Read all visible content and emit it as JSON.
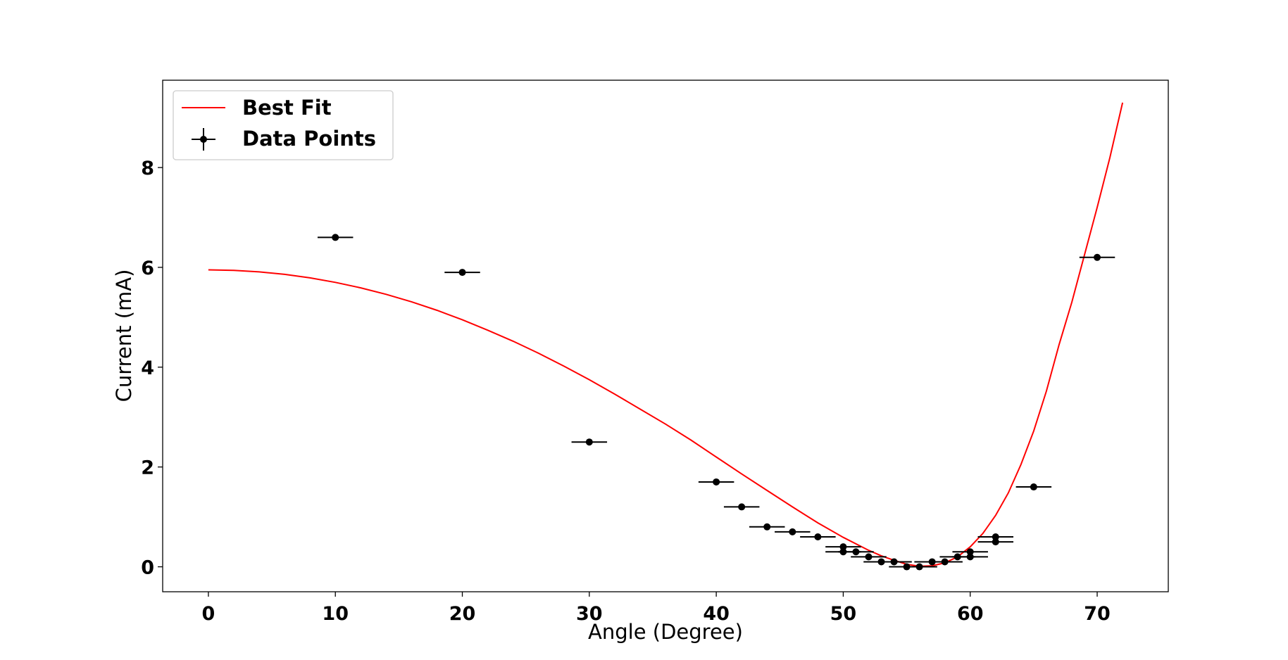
{
  "chart_data": {
    "type": "scatter",
    "title": "",
    "xlabel": "Angle (Degree)",
    "ylabel": "Current (mA)",
    "xlim": [
      -3.6,
      75.6
    ],
    "ylim": [
      -0.5,
      9.75
    ],
    "xticks": [
      0,
      10,
      20,
      30,
      40,
      50,
      60,
      70
    ],
    "yticks": [
      0,
      2,
      4,
      6,
      8
    ],
    "grid": false,
    "legend_position": "upper left",
    "legend": [
      "Best Fit",
      "Data Points"
    ],
    "colors": {
      "fit": "#ff0000",
      "points": "#000000"
    },
    "series": [
      {
        "name": "Best Fit",
        "kind": "line",
        "x": [
          0,
          2,
          4,
          6,
          8,
          10,
          12,
          14,
          16,
          18,
          20,
          22,
          24,
          26,
          28,
          30,
          32,
          34,
          36,
          38,
          40,
          42,
          44,
          46,
          48,
          50,
          52,
          53,
          54,
          55,
          56,
          57,
          58,
          59,
          60,
          61,
          62,
          63,
          64,
          65,
          66,
          67,
          68,
          69,
          70,
          71,
          72
        ],
        "y": [
          5.95,
          5.94,
          5.91,
          5.86,
          5.79,
          5.7,
          5.59,
          5.46,
          5.31,
          5.14,
          4.95,
          4.74,
          4.52,
          4.28,
          4.02,
          3.75,
          3.46,
          3.16,
          2.86,
          2.54,
          2.2,
          1.86,
          1.53,
          1.2,
          0.88,
          0.59,
          0.33,
          0.22,
          0.13,
          0.05,
          0.01,
          0.02,
          0.08,
          0.2,
          0.4,
          0.67,
          1.03,
          1.48,
          2.05,
          2.72,
          3.52,
          4.45,
          5.3,
          6.25,
          7.2,
          8.2,
          9.3
        ]
      },
      {
        "name": "Data Points",
        "kind": "errorbar",
        "x_error": 1.4,
        "x": [
          10,
          20,
          30,
          40,
          42,
          44,
          46,
          48,
          50,
          50,
          51,
          52,
          53,
          54,
          55,
          56,
          57,
          58,
          59,
          60,
          60,
          62,
          62,
          65,
          70
        ],
        "y": [
          6.6,
          5.9,
          2.5,
          1.7,
          1.2,
          0.8,
          0.7,
          0.6,
          0.4,
          0.3,
          0.3,
          0.2,
          0.1,
          0.1,
          0.0,
          0.0,
          0.1,
          0.1,
          0.2,
          0.3,
          0.2,
          0.6,
          0.5,
          1.6,
          6.2
        ]
      }
    ]
  }
}
